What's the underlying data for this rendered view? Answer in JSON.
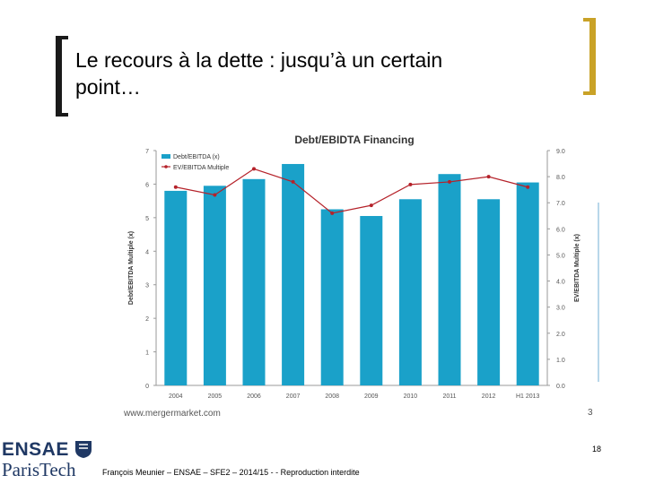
{
  "slide": {
    "title_line1": "Le recours à la dette : jusqu’à un certain",
    "title_line2": "point…",
    "source": "www.mergermarket.com",
    "chart_page": "3",
    "slide_number": "18",
    "footer": "François Meunier – ENSAE – SFE2 – 2014/15 - - Reproduction interdite",
    "logo_text_1": "ENSAE",
    "logo_text_2": "ParisTech"
  },
  "chart_data": {
    "type": "bar",
    "title": "Debt/EBIDTA Financing",
    "categories": [
      "2004",
      "2005",
      "2006",
      "2007",
      "2008",
      "2009",
      "2010",
      "2011",
      "2012",
      "H1 2013"
    ],
    "series": [
      {
        "name": "Debt/EBITDA (x)",
        "values": [
          5.8,
          5.95,
          6.15,
          6.6,
          5.25,
          5.05,
          5.55,
          6.3,
          5.55,
          6.05
        ],
        "axis": "left",
        "kind": "bar",
        "color": "#1aa1c9"
      },
      {
        "name": "EV/EBITDA Multiple",
        "values": [
          7.6,
          7.3,
          8.3,
          7.8,
          6.6,
          6.9,
          7.7,
          7.8,
          8.0,
          7.6
        ],
        "axis": "right",
        "kind": "line",
        "color": "#b5222a"
      }
    ],
    "ylabel": "Debt/EBITDA Multiple (x)",
    "ylabel_right": "EV/EBITDA Multiple (x)",
    "ylim": [
      0,
      7
    ],
    "y_ticks": [
      "0",
      "1",
      "2",
      "3",
      "4",
      "5",
      "6",
      "7"
    ],
    "ylim_right": [
      0,
      9
    ],
    "y_ticks_right": [
      "0.0",
      "1.0",
      "2.0",
      "3.0",
      "4.0",
      "5.0",
      "6.0",
      "7.0",
      "8.0",
      "9.0"
    ],
    "legend_position": "top-left",
    "grid": false
  }
}
